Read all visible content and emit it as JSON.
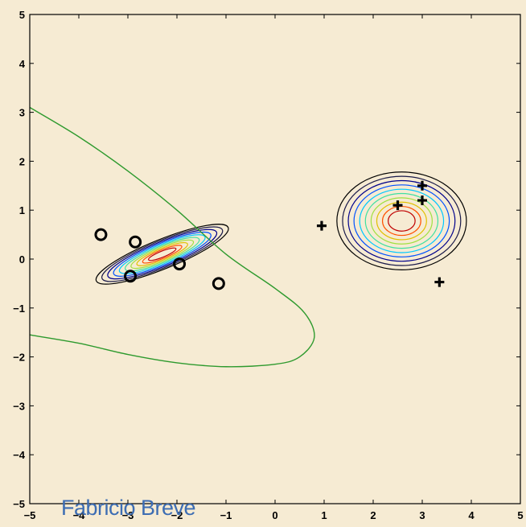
{
  "chart_data": {
    "type": "scatter",
    "xlim": [
      -5,
      5
    ],
    "ylim": [
      -5,
      5
    ],
    "x_ticks": [
      -5,
      -4,
      -3,
      -2,
      -1,
      0,
      1,
      2,
      3,
      4,
      5
    ],
    "y_ticks": [
      -5,
      -4,
      -3,
      -2,
      -1,
      0,
      1,
      2,
      3,
      4,
      5
    ],
    "grid": false,
    "series": [
      {
        "marker": "circle",
        "points": [
          [
            -3.55,
            0.5
          ],
          [
            -2.85,
            0.35
          ],
          [
            -2.95,
            -0.35
          ],
          [
            -1.95,
            -0.1
          ],
          [
            -1.15,
            -0.5
          ]
        ]
      },
      {
        "marker": "plus",
        "points": [
          [
            2.5,
            1.1
          ],
          [
            3.0,
            1.5
          ],
          [
            3.0,
            1.2
          ],
          [
            0.95,
            0.68
          ],
          [
            3.35,
            -0.47
          ]
        ]
      }
    ],
    "contours": [
      {
        "center": [
          -2.3,
          0.1
        ],
        "semi_major": 1.45,
        "semi_minor": 0.3,
        "angle_deg": -22,
        "levels": 10,
        "colors": [
          "#000000",
          "#1a1a4a",
          "#00008b",
          "#0050ff",
          "#00c8ff",
          "#40e0a0",
          "#a0e040",
          "#e0c000",
          "#ff5000",
          "#c00000"
        ]
      },
      {
        "center": [
          2.58,
          0.78
        ],
        "semi_major": 1.32,
        "semi_minor": 1.0,
        "angle_deg": 0,
        "levels": 10,
        "colors": [
          "#000000",
          "#1a1a4a",
          "#00008b",
          "#0050ff",
          "#00c8ff",
          "#40e0a0",
          "#a0e040",
          "#e0c000",
          "#ff5000",
          "#c00000"
        ]
      }
    ],
    "decision_boundary": {
      "color": "#2e9a2e",
      "points": [
        [
          -5,
          3.1
        ],
        [
          -4,
          2.5
        ],
        [
          -3,
          1.8
        ],
        [
          -2,
          1.0
        ],
        [
          -1,
          0.1
        ],
        [
          0,
          -0.6
        ],
        [
          0.6,
          -1.1
        ],
        [
          0.8,
          -1.6
        ],
        [
          0.5,
          -2.0
        ],
        [
          0,
          -2.15
        ],
        [
          -1,
          -2.2
        ],
        [
          -2,
          -2.12
        ],
        [
          -3,
          -1.95
        ],
        [
          -4,
          -1.72
        ],
        [
          -5,
          -1.55
        ]
      ]
    }
  },
  "watermark": "Fabricio Breve"
}
